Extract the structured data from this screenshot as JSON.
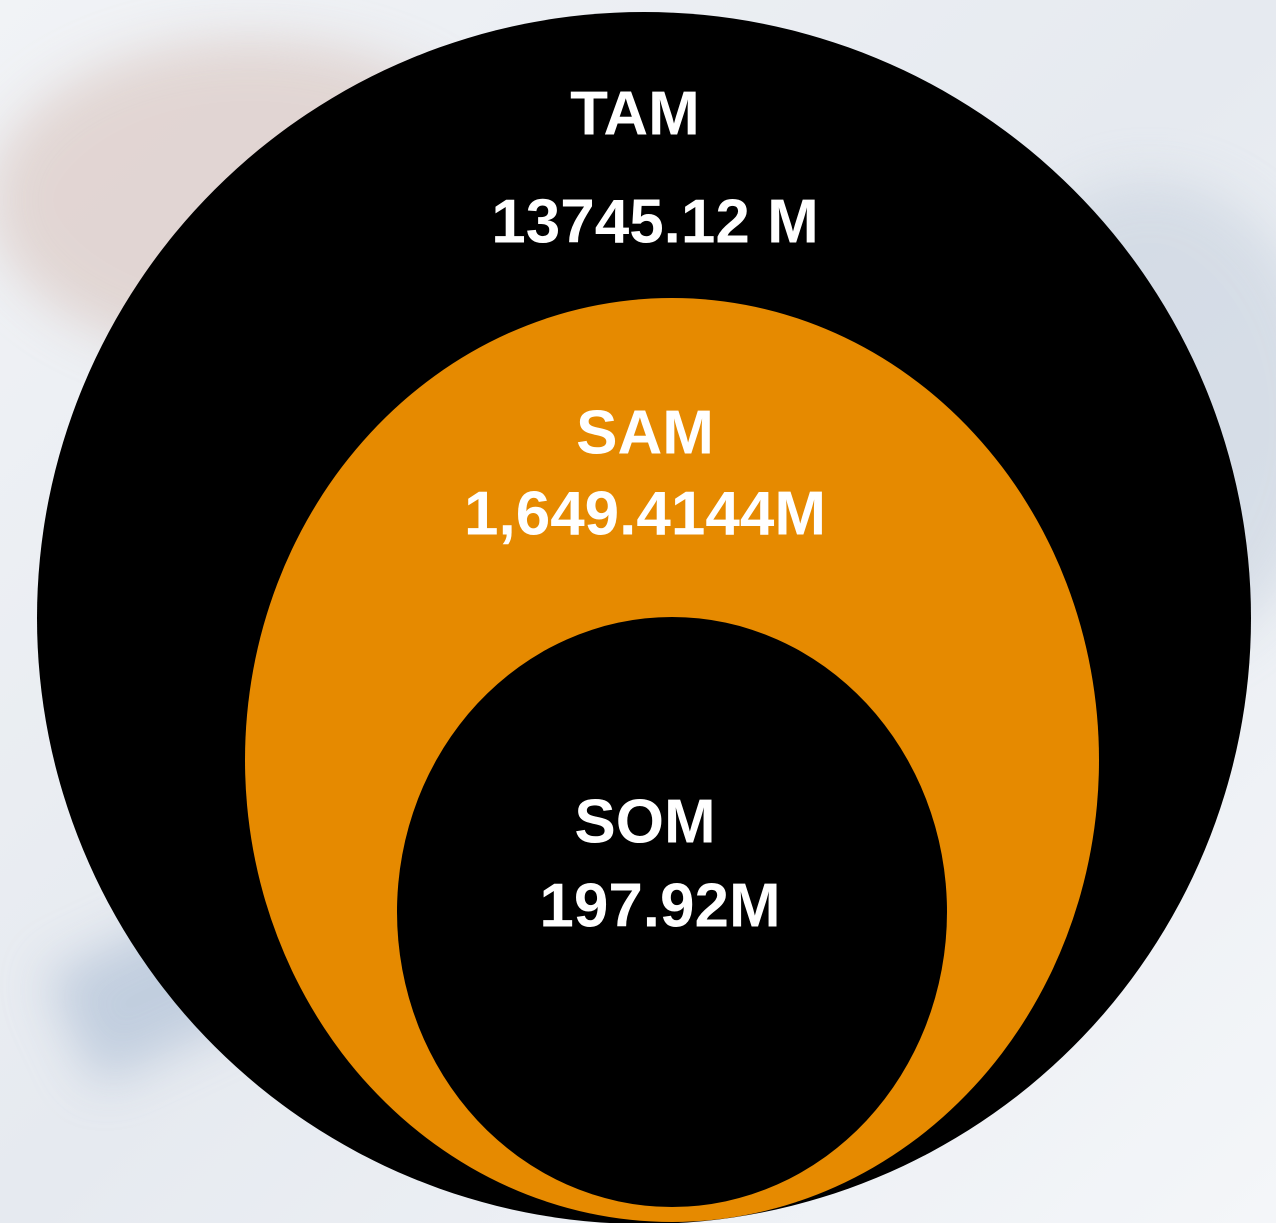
{
  "circles": [
    {
      "label": "TAM",
      "value": "13745.12 M"
    },
    {
      "label": "SAM",
      "value": "1,649.4144M"
    },
    {
      "label": "SOM",
      "value": "197.92M"
    }
  ]
}
